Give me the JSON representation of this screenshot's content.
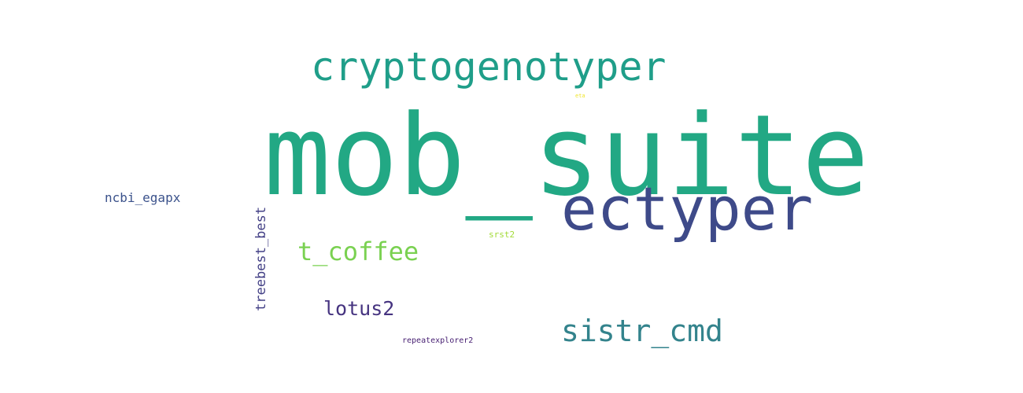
{
  "words": [
    {
      "text": "mob_suite",
      "color": "#22a884"
    },
    {
      "text": "cryptogenotyper",
      "color": "#1f9e89"
    },
    {
      "text": "ectyper",
      "color": "#3e4a89"
    },
    {
      "text": "sistr_cmd",
      "color": "#33838c"
    },
    {
      "text": "t_coffee",
      "color": "#7ad151"
    },
    {
      "text": "lotus2",
      "color": "#463480"
    },
    {
      "text": "treebest_best",
      "color": "#423f85"
    },
    {
      "text": "ncbi_egapx",
      "color": "#3b528b"
    },
    {
      "text": "srst2",
      "color": "#a2da37"
    },
    {
      "text": "repeatexplorer2",
      "color": "#482173"
    },
    {
      "text": "eta",
      "color": "#f0e52b"
    }
  ]
}
